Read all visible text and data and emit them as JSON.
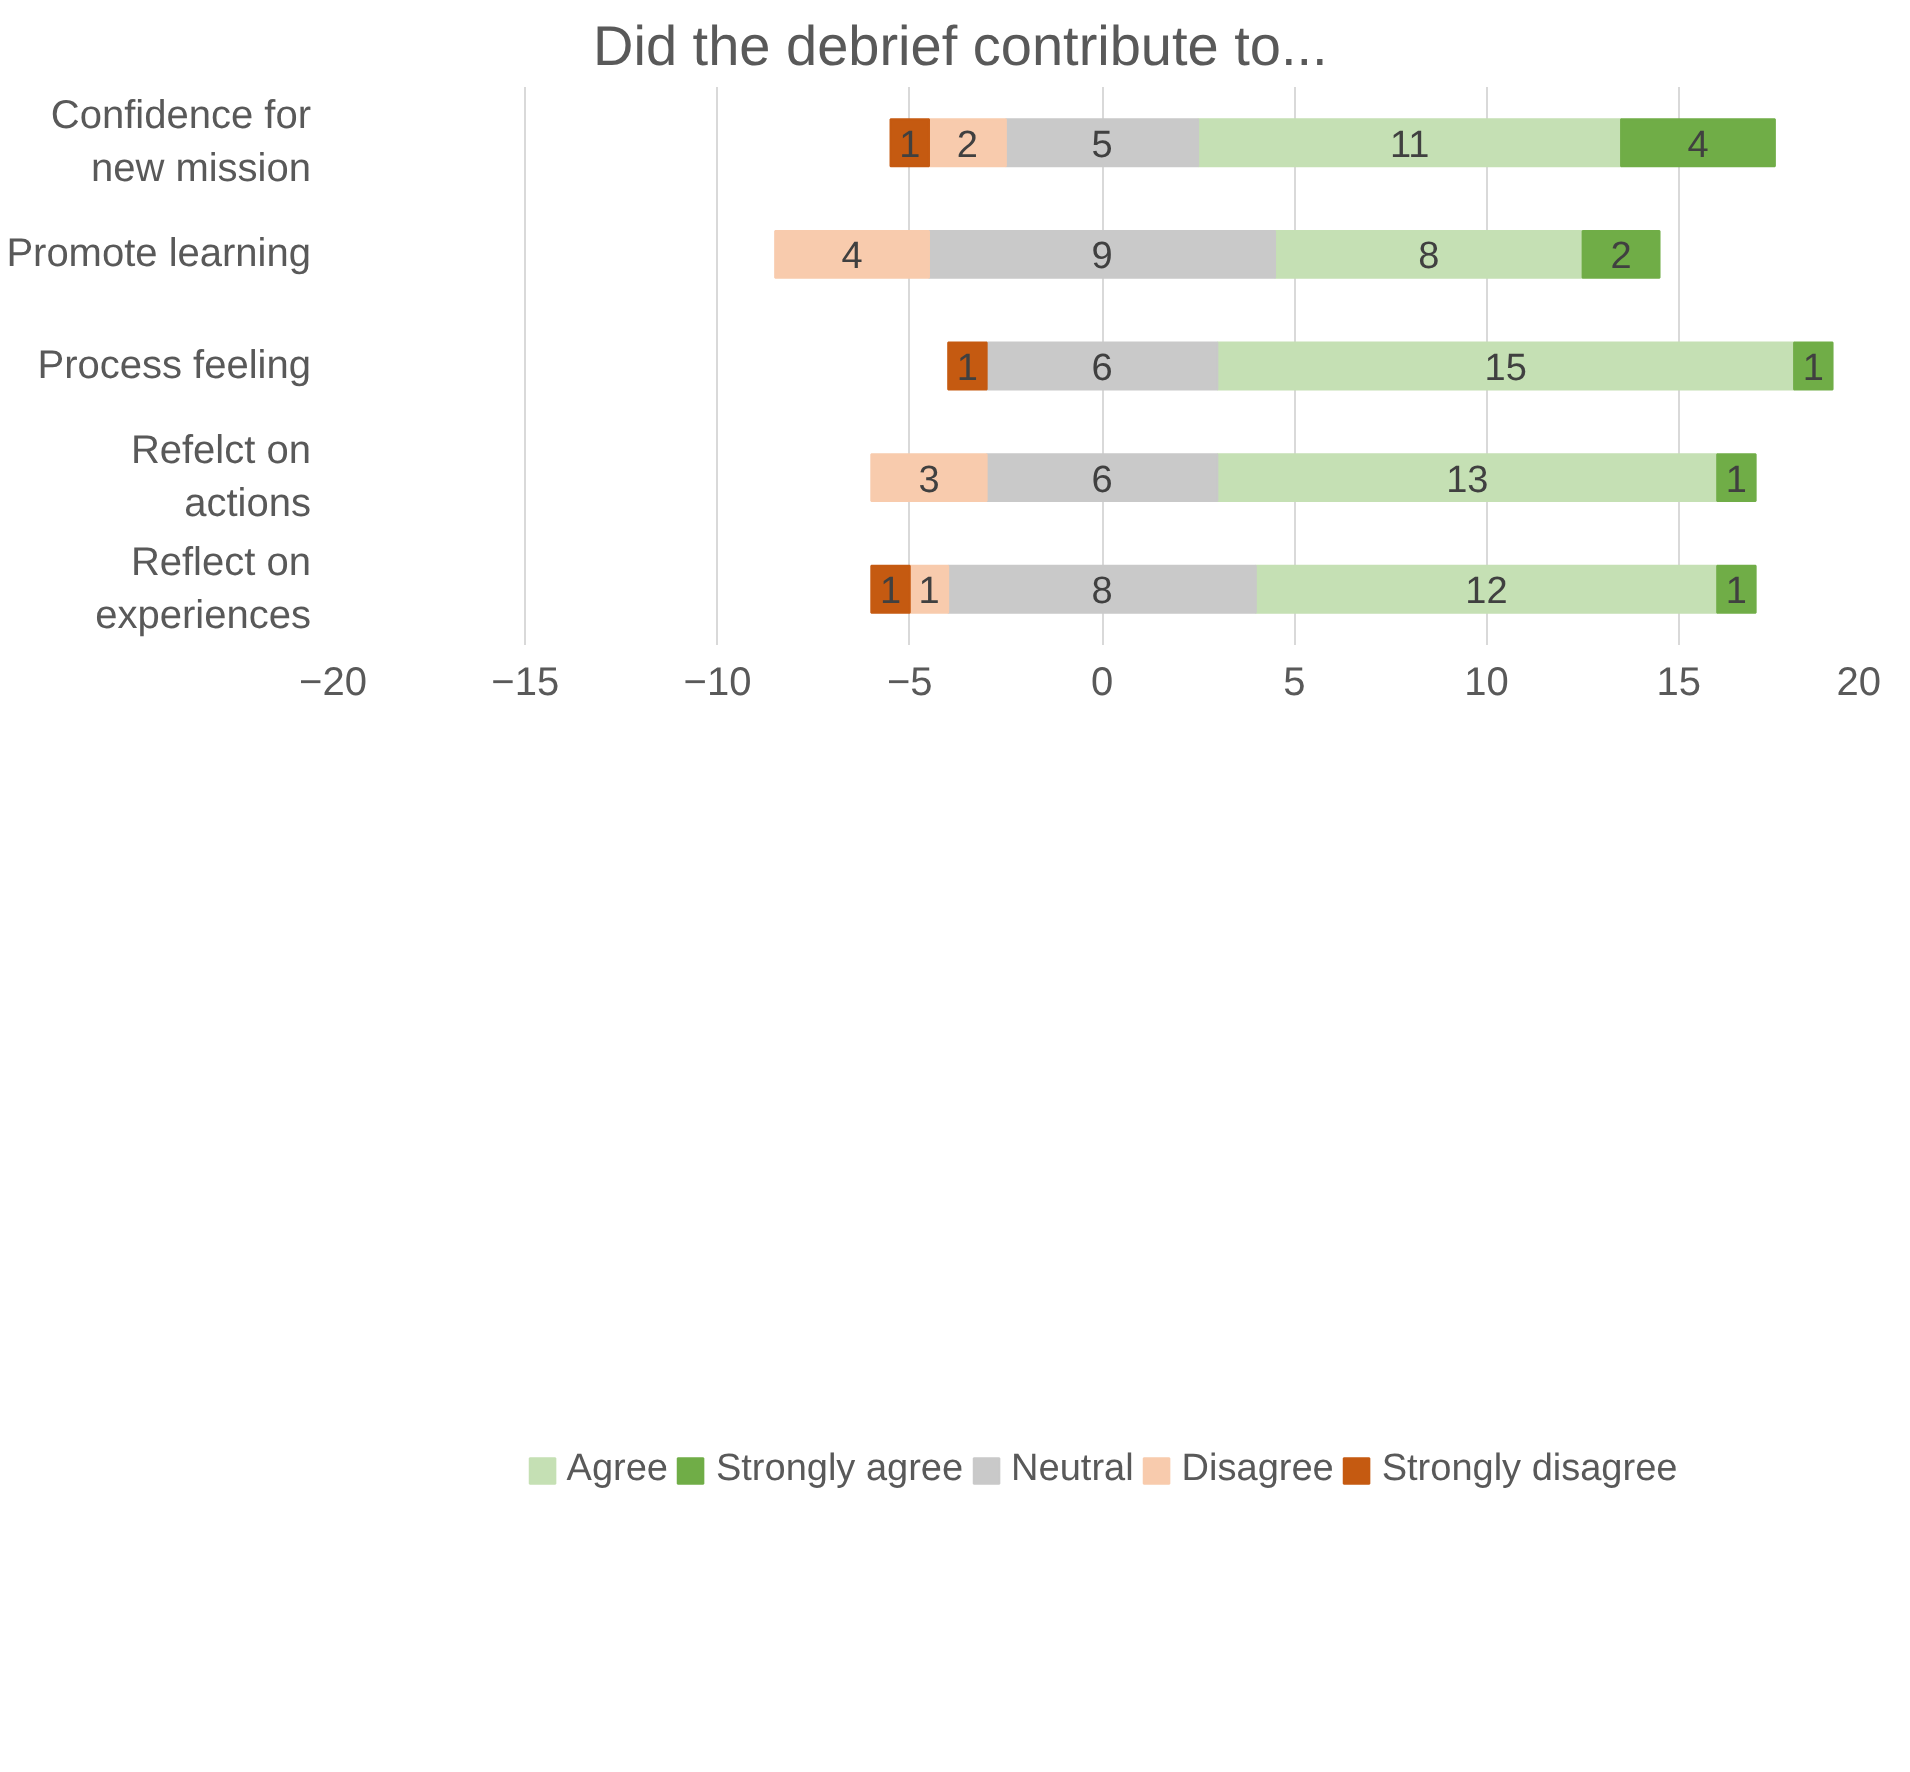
{
  "chart_data": {
    "type": "bar",
    "orientation": "horizontal",
    "title": "Did the debrief contribute to...",
    "categories": [
      "Confidence for new mission",
      "Promote learning",
      "Process feeling",
      "Refelct on actions",
      "Reflect on experiences"
    ],
    "series": [
      {
        "name": "Agree",
        "color": "#c5e0b4",
        "values": [
          11,
          8,
          15,
          13,
          12
        ],
        "base": [
          2.5,
          4.5,
          3,
          3,
          4
        ]
      },
      {
        "name": "Strongly agree",
        "color": "#70ad47",
        "values": [
          4,
          2,
          1,
          1,
          1
        ],
        "base": [
          13.5,
          12.5,
          18,
          16,
          16
        ]
      },
      {
        "name": "Neutral",
        "color": "#c9c9c9",
        "values": [
          5,
          9,
          6,
          6,
          8
        ],
        "base": [
          -2.5,
          -4.5,
          -3,
          -3,
          -4
        ]
      },
      {
        "name": "Disagree",
        "color": "#f8cbad",
        "values": [
          2,
          4,
          null,
          3,
          1
        ],
        "base": [
          -4.5,
          -8.5,
          null,
          -6,
          -5
        ]
      },
      {
        "name": "Strongly disagree",
        "color": "#c55a11",
        "values": [
          1,
          null,
          1,
          null,
          1
        ],
        "base": [
          -5.5,
          null,
          -4,
          null,
          -6
        ]
      }
    ],
    "xlim": [
      -20,
      20
    ],
    "xticks": [
      -20,
      -15,
      -10,
      -5,
      0,
      5,
      10,
      15,
      20
    ],
    "grid": "x",
    "legend": "bottom",
    "data_labels": true
  }
}
